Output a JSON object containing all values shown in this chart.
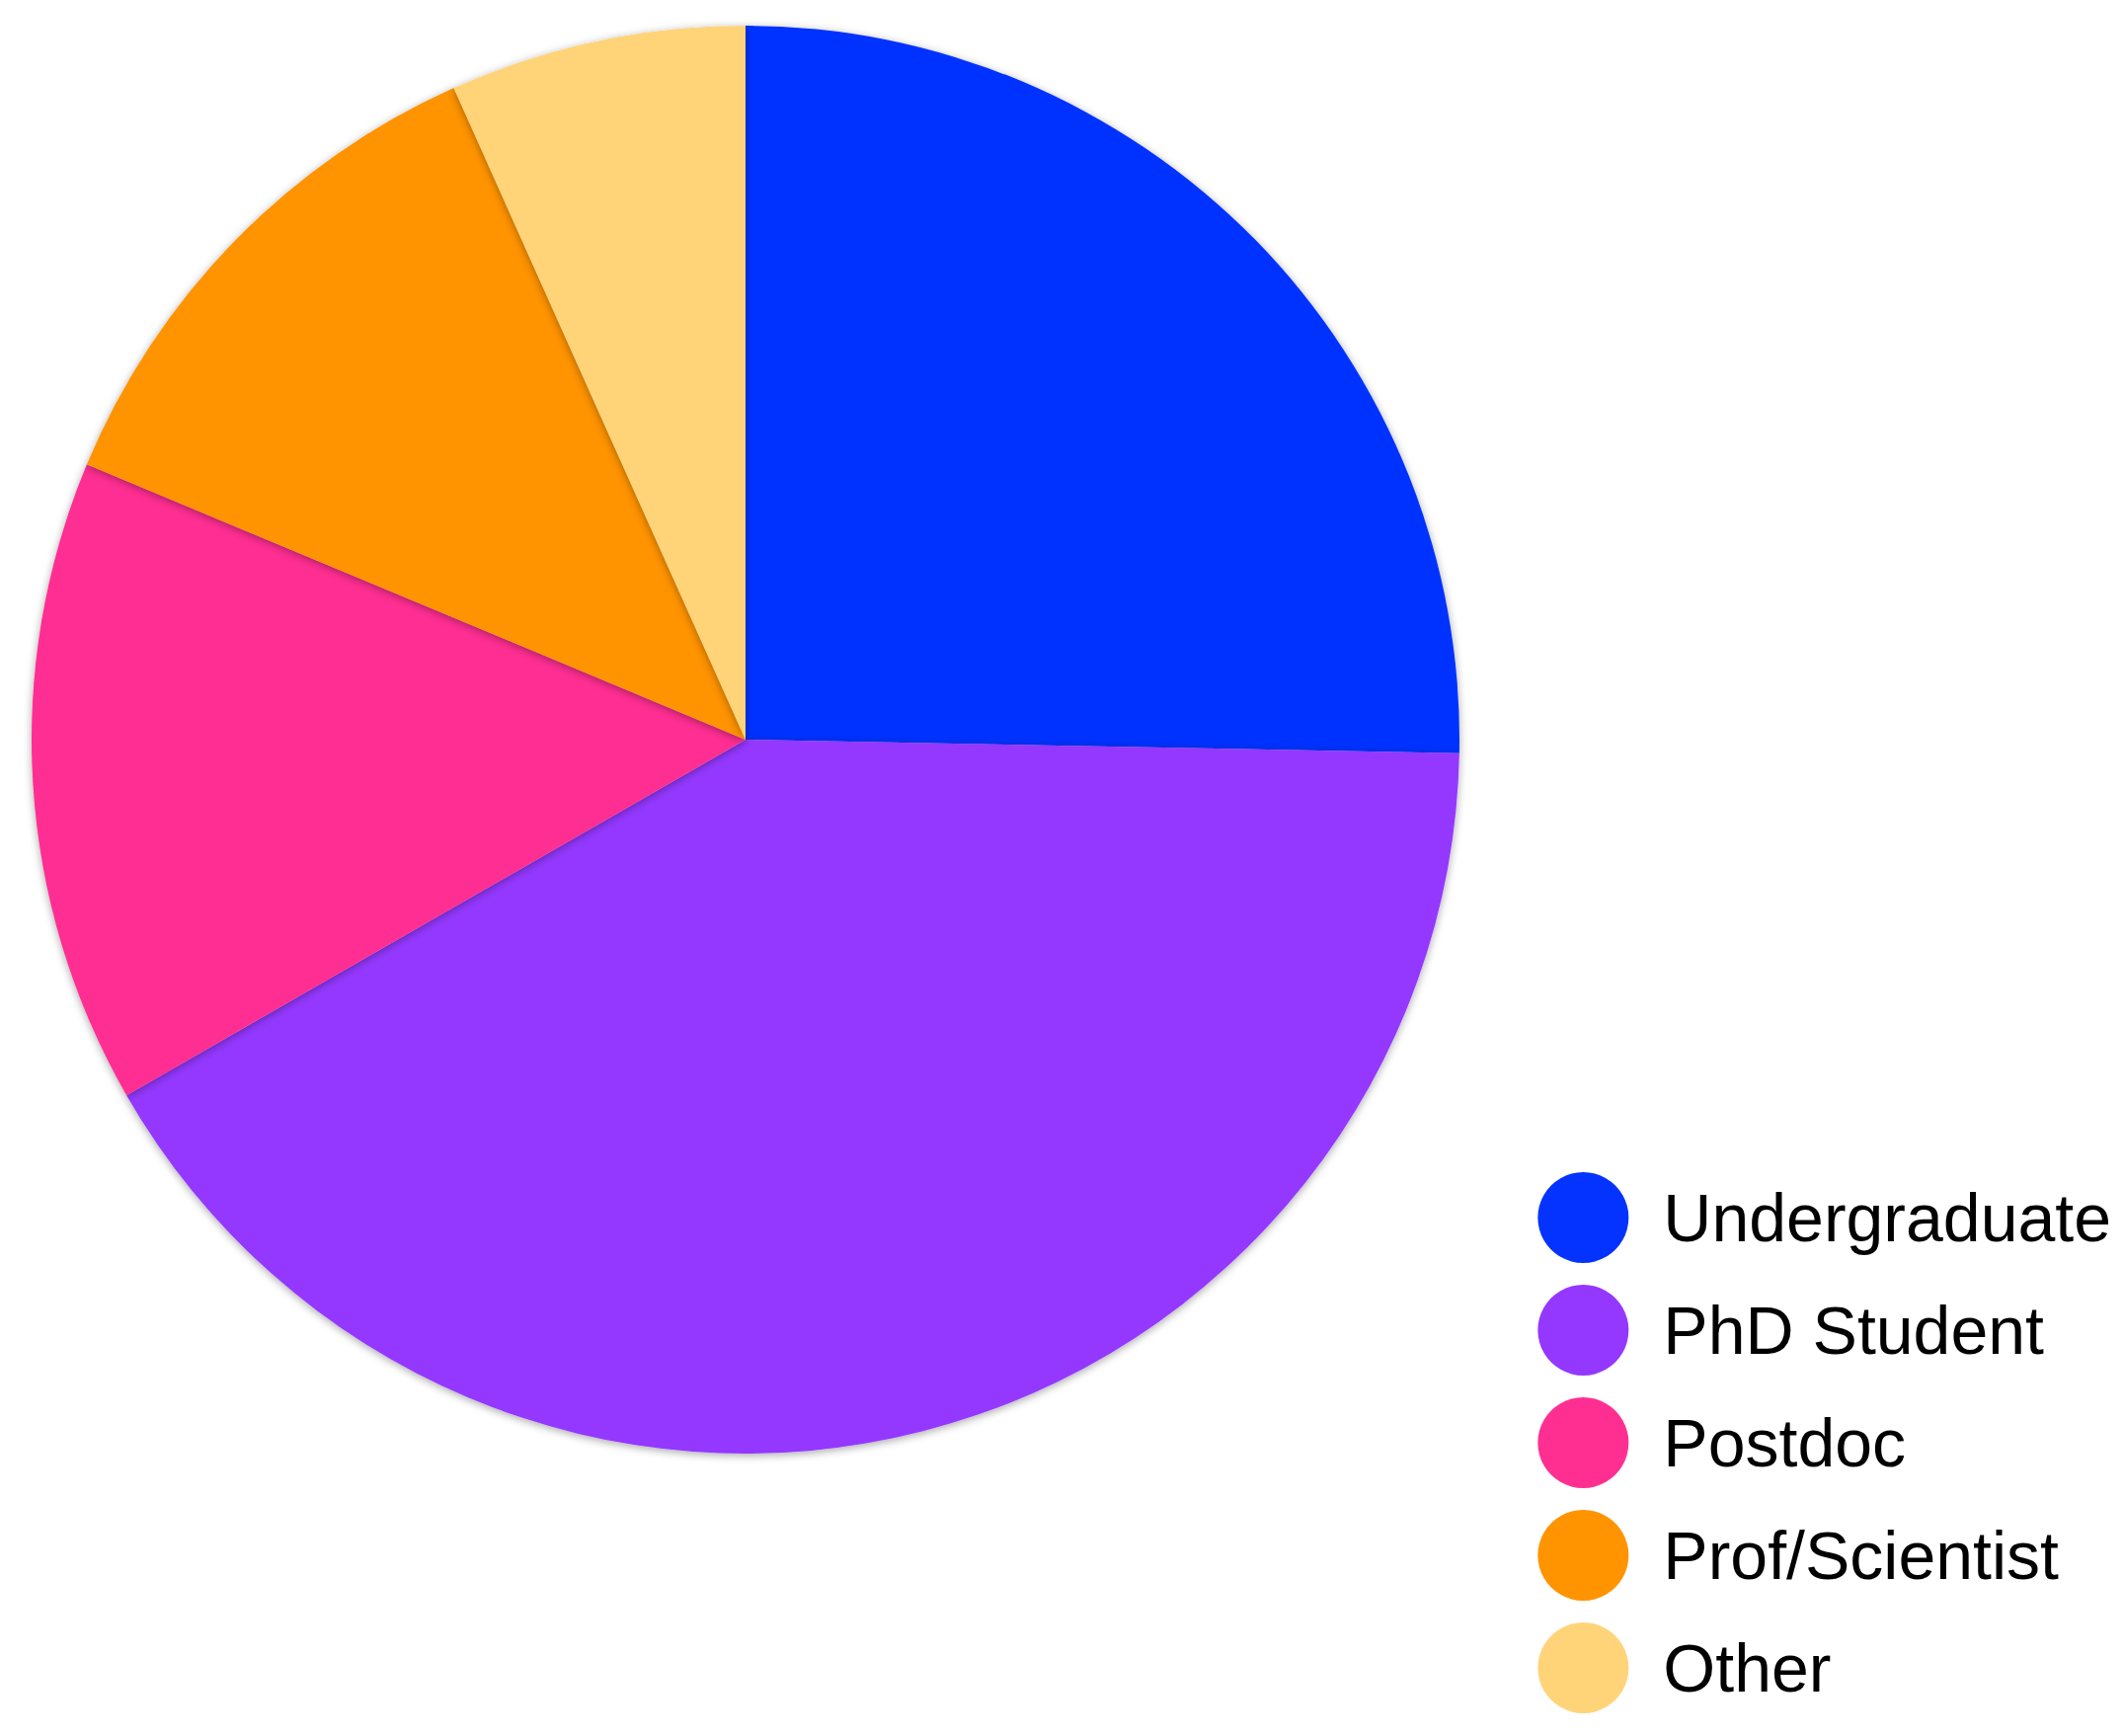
{
  "chart_data": {
    "type": "pie",
    "categories": [
      "Undergraduate",
      "PhD Student",
      "Postdoc",
      "Prof/Scientist",
      "Other"
    ],
    "values": [
      25.3,
      41.4,
      14.6,
      12.0,
      6.7
    ],
    "colors": [
      "#0433ff",
      "#9437ff",
      "#ff2f92",
      "#ff9300",
      "#ffd479"
    ],
    "legend": "bottom right"
  }
}
